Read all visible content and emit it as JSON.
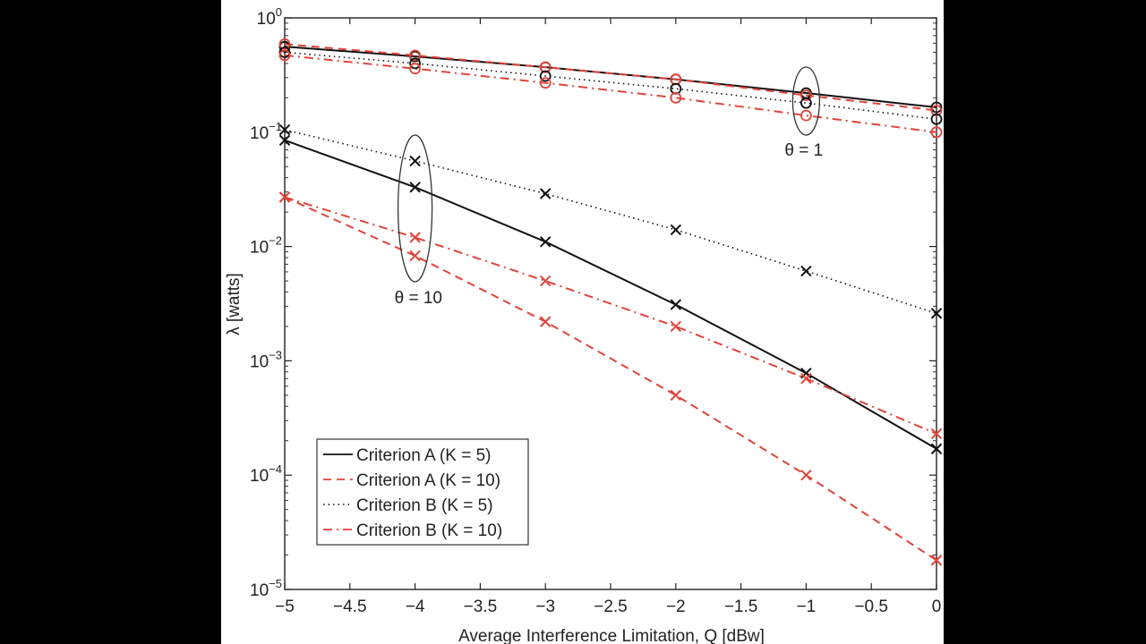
{
  "chart_data": {
    "type": "line",
    "title": "",
    "xlabel": "Average Interference Limitation,  Q [dBw]",
    "ylabel": "λ  [watts]",
    "xscale": "linear",
    "yscale": "log",
    "xlim": [
      -5,
      0
    ],
    "ylim": [
      1e-05,
      1
    ],
    "grid": false,
    "x": [
      -5,
      -4,
      -3,
      -2,
      -1,
      0
    ],
    "xticks": [
      -5,
      -4.5,
      -4,
      -3.5,
      -3,
      -2.5,
      -2,
      -1.5,
      -1,
      -0.5,
      0
    ],
    "xtick_labels": [
      "−5",
      "−4.5",
      "−4",
      "−3.5",
      "−3",
      "−2.5",
      "−2",
      "−1.5",
      "−1",
      "−0.5",
      "0"
    ],
    "yticks": [
      {
        "base": "10",
        "exp": "0"
      },
      {
        "base": "10",
        "exp": "−1"
      },
      {
        "base": "10",
        "exp": "−2"
      },
      {
        "base": "10",
        "exp": "−3"
      },
      {
        "base": "10",
        "exp": "−4"
      },
      {
        "base": "10",
        "exp": "−5"
      }
    ],
    "legend": {
      "placement": "lower-left",
      "entries": [
        {
          "label": "Criterion A (K = 5)",
          "color": "#111111",
          "style": "solid"
        },
        {
          "label": "Criterion A (K = 10)",
          "color": "#e0443a",
          "style": "dashed"
        },
        {
          "label": "Criterion B (K = 5)",
          "color": "#111111",
          "style": "dotted"
        },
        {
          "label": "Criterion B (K = 10)",
          "color": "#e0443a",
          "style": "dashdot"
        }
      ]
    },
    "series": [
      {
        "name": "Criterion A (K = 5), θ = 1",
        "group": "theta1",
        "style": "solid",
        "color": "#111111",
        "marker": "circle",
        "values": [
          0.56,
          0.46,
          0.37,
          0.29,
          0.22,
          0.165
        ]
      },
      {
        "name": "Criterion A (K = 10), θ = 1",
        "group": "theta1",
        "style": "dashed",
        "color": "#e0443a",
        "marker": "circle",
        "values": [
          0.59,
          0.47,
          0.37,
          0.29,
          0.21,
          0.155
        ]
      },
      {
        "name": "Criterion B (K = 5), θ = 1",
        "group": "theta1",
        "style": "dotted",
        "color": "#111111",
        "marker": "circle",
        "values": [
          0.5,
          0.4,
          0.31,
          0.24,
          0.18,
          0.13
        ]
      },
      {
        "name": "Criterion B (K = 10), θ = 1",
        "group": "theta1",
        "style": "dashdot",
        "color": "#e0443a",
        "marker": "circle",
        "values": [
          0.47,
          0.36,
          0.27,
          0.2,
          0.14,
          0.1
        ]
      },
      {
        "name": "Criterion A (K = 5), θ = 10",
        "group": "theta10",
        "style": "solid",
        "color": "#111111",
        "marker": "x",
        "values": [
          0.085,
          0.033,
          0.011,
          0.0031,
          0.00078,
          0.00017
        ]
      },
      {
        "name": "Criterion A (K = 10), θ = 10",
        "group": "theta10",
        "style": "dashed",
        "color": "#e0443a",
        "marker": "x",
        "values": [
          0.027,
          0.0083,
          0.0022,
          0.0005,
          0.0001,
          1.8e-05
        ]
      },
      {
        "name": "Criterion B (K = 5), θ = 10",
        "group": "theta10",
        "style": "dotted",
        "color": "#111111",
        "marker": "x",
        "values": [
          0.105,
          0.056,
          0.029,
          0.014,
          0.0061,
          0.0026
        ]
      },
      {
        "name": "Criterion B (K = 10), θ = 10",
        "group": "theta10",
        "style": "dashdot",
        "color": "#e0443a",
        "marker": "x",
        "values": [
          0.027,
          0.012,
          0.005,
          0.002,
          0.0007,
          0.00023
        ]
      }
    ],
    "annotations": [
      {
        "text": "θ = 1",
        "encircles_x": -1,
        "group": "theta1"
      },
      {
        "text": "θ = 10",
        "encircles_x": -4,
        "group": "theta10"
      }
    ]
  }
}
